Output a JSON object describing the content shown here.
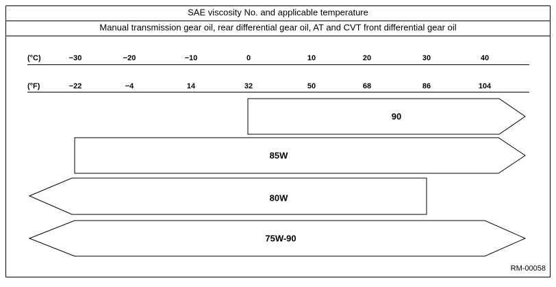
{
  "header": {
    "title": "SAE viscosity No. and applicable temperature",
    "subtitle": "Manual transmission gear oil, rear differential gear oil, AT and CVT front differential gear oil"
  },
  "scale": {
    "celsius": {
      "unit": "(°C)",
      "ticks": [
        "−30",
        "−20",
        "−10",
        "0",
        "10",
        "20",
        "30",
        "40"
      ]
    },
    "fahrenheit": {
      "unit": "(°F)",
      "ticks": [
        "−22",
        "−4",
        "14",
        "32",
        "50",
        "68",
        "86",
        "104"
      ]
    }
  },
  "grades": [
    "90",
    "85W",
    "80W",
    "75W-90"
  ],
  "figure_id": "RM-00058"
}
